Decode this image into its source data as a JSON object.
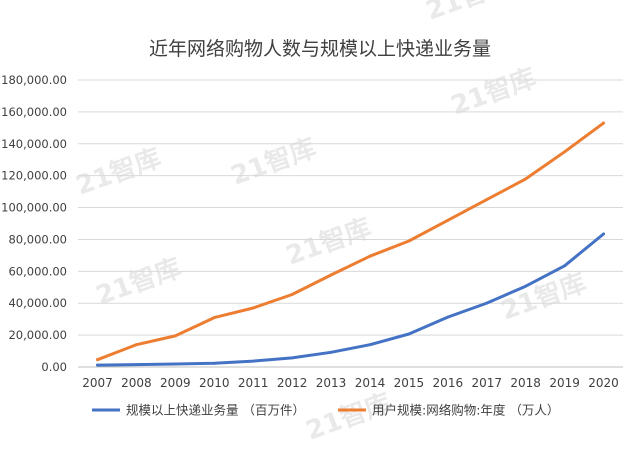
{
  "chart_data": {
    "type": "line",
    "title": "近年网络购物人数与规模以上快递业务量",
    "x": [
      "2007",
      "2008",
      "2009",
      "2010",
      "2011",
      "2012",
      "2013",
      "2014",
      "2015",
      "2016",
      "2017",
      "2018",
      "2019",
      "2020"
    ],
    "ylim": [
      0,
      180000
    ],
    "y_ticks": [
      "0.00",
      "20,000.00",
      "40,000.00",
      "60,000.00",
      "80,000.00",
      "100,000.00",
      "120,000.00",
      "140,000.00",
      "160,000.00",
      "180,000.00"
    ],
    "grid": true,
    "legend_position": "bottom",
    "series": [
      {
        "name": "规模以上快递业务量 （百万件）",
        "color": "#4472c4",
        "values": [
          1200,
          1500,
          1900,
          2300,
          3700,
          5700,
          9200,
          14000,
          20700,
          31300,
          40100,
          50700,
          63500,
          83400
        ]
      },
      {
        "name": "用户规模:网络购物:年度 （万人）",
        "color": "#ed7d31",
        "values": [
          4600,
          14000,
          19500,
          31000,
          37000,
          45500,
          57700,
          69500,
          79000,
          92000,
          105000,
          118000,
          135000,
          153000
        ]
      }
    ]
  },
  "watermark": {
    "text": "21智库"
  }
}
